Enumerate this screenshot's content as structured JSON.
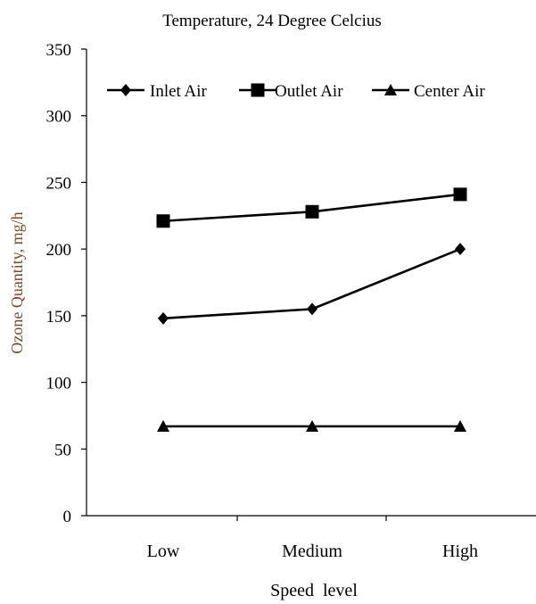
{
  "chart_data": {
    "type": "line",
    "title": "Temperature, 24 Degree Celcius",
    "xlabel": "Speed  level",
    "ylabel": "Ozone Quantity, mg/h",
    "ylabel_color": "#7a4a2a",
    "categories": [
      "Low",
      "Medium",
      "High"
    ],
    "ylim": [
      0,
      350
    ],
    "yticks": [
      0,
      50,
      100,
      150,
      200,
      250,
      300,
      350
    ],
    "grid": false,
    "legend_position": "top",
    "series": [
      {
        "name": "Inlet Air",
        "marker": "diamond",
        "values": [
          148,
          155,
          200
        ]
      },
      {
        "name": "Outlet Air",
        "marker": "square",
        "values": [
          221,
          228,
          241
        ]
      },
      {
        "name": "Center Air",
        "marker": "triangle",
        "values": [
          67,
          67,
          67
        ]
      }
    ]
  }
}
